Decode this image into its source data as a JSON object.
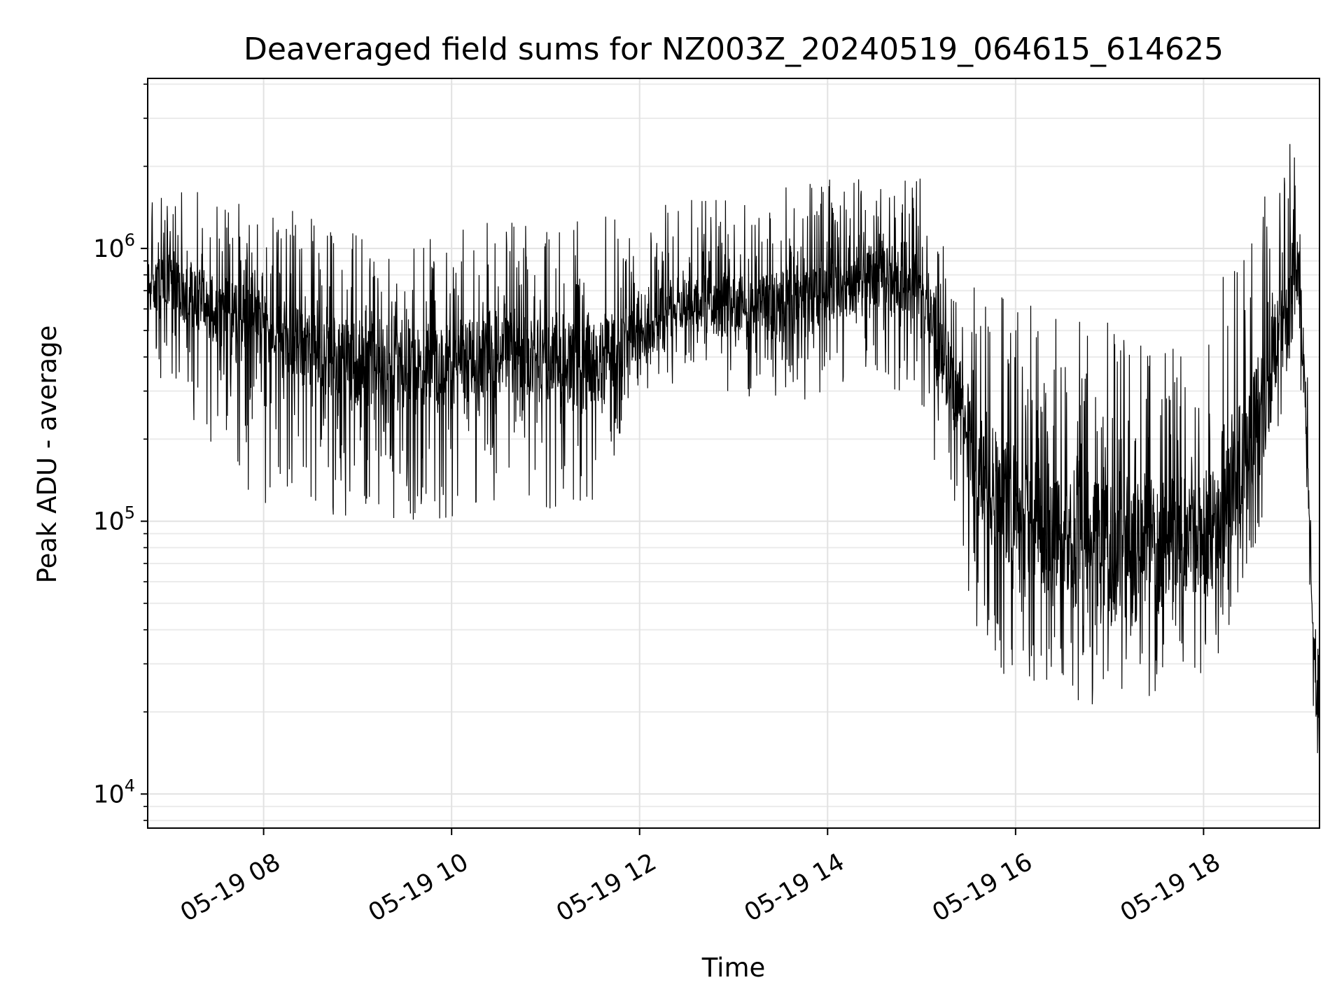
{
  "chart_data": {
    "type": "line",
    "title": "Deaveraged field sums for NZ003Z_20240519_064615_614625",
    "xlabel": "Time",
    "ylabel": "Peak ADU - average",
    "yscale": "log",
    "xlim": [
      "05-19 06:46",
      "05-19 19:14"
    ],
    "ylim": [
      7500,
      4200000
    ],
    "grid": true,
    "x_ticks": [
      {
        "label": "05-19 08",
        "hour": 8
      },
      {
        "label": "05-19 10",
        "hour": 10
      },
      {
        "label": "05-19 12",
        "hour": 12
      },
      {
        "label": "05-19 14",
        "hour": 14
      },
      {
        "label": "05-19 16",
        "hour": 16
      },
      {
        "label": "05-19 18",
        "hour": 18
      }
    ],
    "y_ticks": [
      {
        "base": "10",
        "exp": "4",
        "value": 10000
      },
      {
        "base": "10",
        "exp": "5",
        "value": 100000
      },
      {
        "base": "10",
        "exp": "6",
        "value": 1000000
      }
    ],
    "series": [
      {
        "color": "#000000",
        "x": [
          "05-19 06:46",
          "05-19 07:00",
          "05-19 07:30",
          "05-19 08:00",
          "05-19 08:30",
          "05-19 09:00",
          "05-19 09:30",
          "05-19 10:00",
          "05-19 10:30",
          "05-19 11:00",
          "05-19 11:30",
          "05-19 12:00",
          "05-19 12:30",
          "05-19 13:00",
          "05-19 13:30",
          "05-19 14:00",
          "05-19 14:30",
          "05-19 15:00",
          "05-19 15:20",
          "05-19 15:40",
          "05-19 16:00",
          "05-19 16:30",
          "05-19 17:00",
          "05-19 17:30",
          "05-19 18:00",
          "05-19 18:30",
          "05-19 18:50",
          "05-19 19:00",
          "05-19 19:05",
          "05-19 19:10",
          "05-19 19:14"
        ],
        "median": [
          700000,
          750000,
          600000,
          500000,
          420000,
          380000,
          360000,
          380000,
          400000,
          380000,
          360000,
          520000,
          650000,
          600000,
          620000,
          700000,
          800000,
          700000,
          300000,
          140000,
          110000,
          90000,
          80000,
          75000,
          90000,
          200000,
          500000,
          900000,
          300000,
          40000,
          15000
        ],
        "low": [
          350000,
          300000,
          180000,
          110000,
          90000,
          110000,
          100000,
          100000,
          120000,
          100000,
          110000,
          250000,
          350000,
          280000,
          250000,
          300000,
          350000,
          250000,
          70000,
          30000,
          25000,
          21000,
          20000,
          20000,
          22000,
          60000,
          250000,
          450000,
          150000,
          20000,
          10000
        ],
        "high": [
          1500000,
          1700000,
          1600000,
          1500000,
          1300000,
          1200000,
          1200000,
          1200000,
          1300000,
          1200000,
          1300000,
          1400000,
          1600000,
          1500000,
          1700000,
          1800000,
          1900000,
          1800000,
          900000,
          700000,
          650000,
          600000,
          650000,
          600000,
          700000,
          1200000,
          2200000,
          3000000,
          800000,
          80000,
          35000
        ]
      }
    ]
  }
}
